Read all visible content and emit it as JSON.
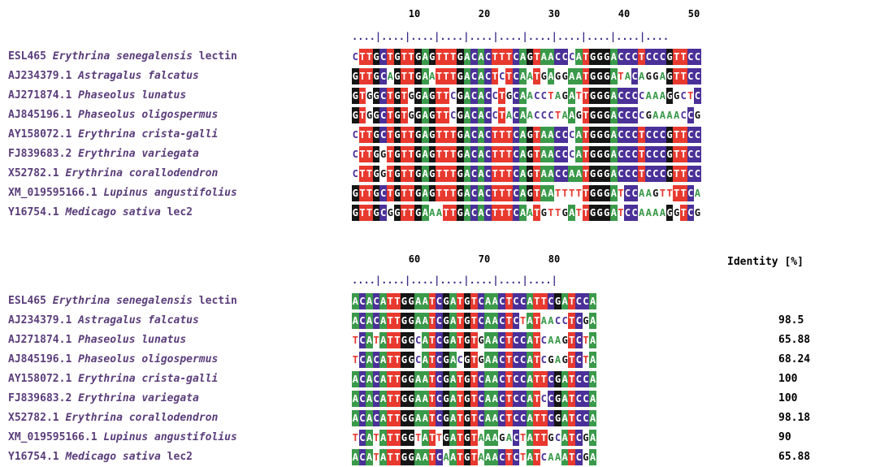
{
  "ruler_top": {
    "ticks": [
      "10",
      "20",
      "30",
      "40",
      "50"
    ],
    "dots": "....|....|....|....|....|....|....|....|....|....|...."
  },
  "ruler_bottom": {
    "ticks": [
      "60",
      "70",
      "80"
    ],
    "dots": "....|....|....|....|....|....|....|"
  },
  "identity_header": "Identity [%]",
  "sequences": [
    {
      "id": "ESL465",
      "species": "Erythrina senegalensis",
      "suffix": "lectin",
      "top": "CTTGCTGTTGAGTTTGACACTTTCAGTAACCCATGGGACCCTCCCGTTCC",
      "bottom": "ACACATTGGAATCGATGTCAACTCCATTCGATCCA",
      "identity": ""
    },
    {
      "id": "AJ234379.1",
      "species": "Astragalus falcatus",
      "suffix": "",
      "top": "GTTGCAGTTGAATTTGACACTCTCAATGAGGAATGGGATACAGGAGTTCC",
      "bottom": "ACACATTGGAATCGATGTCAACTCTATAACCTCGA",
      "identity": "98.5"
    },
    {
      "id": "AJ271874.1",
      "species": "Phaseolus lunatus",
      "suffix": "",
      "top": "GTGGCTGTGGAGTTCGACACCTGCAACCTAGATTGGGACCCCAAAGGCTC",
      "bottom": "TCATATTGGCATCGATGTGAACTCCATCAAGTCTA",
      "identity": "65.88"
    },
    {
      "id": "AJ845196.1",
      "species": "Phaseolus oligospermus",
      "suffix": "",
      "top": "GTGGCTGTGGAGTTCGACACCTACAACCCTAAGTGGGACCCCGAAAACCG",
      "bottom": "TCACATTGGCATCGACGTGAACTCCATCGAGTCTA",
      "identity": "68.24"
    },
    {
      "id": "AY158072.1",
      "species": "Erythrina crista-galli",
      "suffix": "",
      "top": "CTTGCTGTTGAGTTTGACACTTTCAGTAACCCATGGGACCCTCCCGTTCC",
      "bottom": "ACACATTGGAATCGATGTCAACTCCATTCGATCCA",
      "identity": "100"
    },
    {
      "id": "FJ839683.2",
      "species": "Erythrina variegata",
      "suffix": "",
      "top": "CTTGGTGTTGAGTTTGACACTTTCAGTAACCCATGGGACCCTCCCGTTCC",
      "bottom": "ACACATTGGAATCGATGTCAACTCCATCCGATCCA",
      "identity": "100"
    },
    {
      "id": "X52782.1",
      "species": "Erythrina corallodendron",
      "suffix": "",
      "top": "CTTGGTGTTGAGTTTGACACTTTCAGTAACCAATGGGACCCTCCCGTTCC",
      "bottom": "ACACATTGGAATCGATGTCAACTCCATTCGATCCA",
      "identity": "98.18"
    },
    {
      "id": "XM_019595166.1",
      "species": "Lupinus angustifolius",
      "suffix": "",
      "top": "GTTGCTGTTGAGTTTGACACTTTCAGTAATTTTTGGGATCCAAGTTTTCA",
      "bottom": "TCATATTGGTATTGATGTAAAGACTATTGCATCGA",
      "identity": "90"
    },
    {
      "id": "Y16754.1",
      "species": "Medicago sativa",
      "suffix": "lec2",
      "top": "GTTGCGGTTGAAATTGACACTTTCAATGTTGATTGGGATCCAAAAGGTCG",
      "bottom": "ACATATTGGAATCAATGTAAACTCTATCAAATCGA",
      "identity": "65.88"
    }
  ]
}
